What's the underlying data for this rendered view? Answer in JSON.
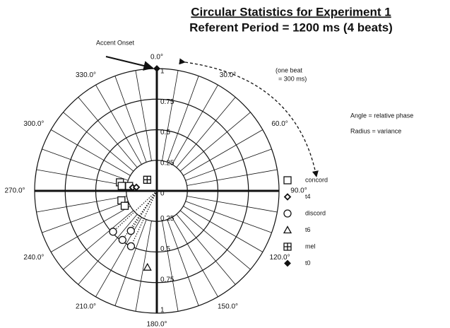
{
  "chart_data": {
    "type": "polar-scatter",
    "title": "Circular Statistics for Experiment 1",
    "subtitle": "Referent Period = 1200 ms (4 beats)",
    "annotations": [
      "Accent Onset",
      "(one beat",
      "= 300 ms)",
      "Angle = relative phase",
      "Radius = variance"
    ],
    "rlim": [
      0,
      1
    ],
    "rticks": [
      0,
      0.25,
      0.5,
      0.75,
      1
    ],
    "angle_ticks": [
      {
        "value": 0,
        "label": "0.0°"
      },
      {
        "value": 30,
        "label": "30.0°"
      },
      {
        "value": 60,
        "label": "60.0°"
      },
      {
        "value": 90,
        "label": "90.0°"
      },
      {
        "value": 120,
        "label": "120.0°"
      },
      {
        "value": 150,
        "label": "150.0°"
      },
      {
        "value": 180,
        "label": "180.0°"
      },
      {
        "value": 210,
        "label": "210.0°"
      },
      {
        "value": 240,
        "label": "240.0°"
      },
      {
        "value": 270,
        "label": "270.0°"
      },
      {
        "value": 300,
        "label": "300.0°"
      },
      {
        "value": 330,
        "label": "330.0°"
      }
    ],
    "spoke_step": 10,
    "series": [
      {
        "name": "concord",
        "marker": "square",
        "color": "#111",
        "angle": [
          283,
          278,
          280,
          255,
          245
        ],
        "values": [
          0.31,
          0.29,
          0.23,
          0.3,
          0.29
        ]
      },
      {
        "name": "t4",
        "marker": "diamond",
        "color": "#111",
        "angle": [
          278,
          280
        ],
        "values": [
          0.2,
          0.17
        ]
      },
      {
        "name": "discord",
        "marker": "circle",
        "color": "#111",
        "rays": true,
        "angle": [
          227,
          215,
          205,
          213
        ],
        "values": [
          0.49,
          0.49,
          0.5,
          0.39
        ]
      },
      {
        "name": "t6",
        "marker": "triangle",
        "color": "#111",
        "angle": [
          187
        ],
        "values": [
          0.63
        ]
      },
      {
        "name": "mel",
        "marker": "boxplus",
        "color": "#111",
        "angle": [
          319
        ],
        "values": [
          0.12
        ]
      },
      {
        "name": "t0",
        "marker": "dot",
        "color": "#111",
        "angle": [
          0
        ],
        "values": [
          1
        ]
      }
    ]
  }
}
